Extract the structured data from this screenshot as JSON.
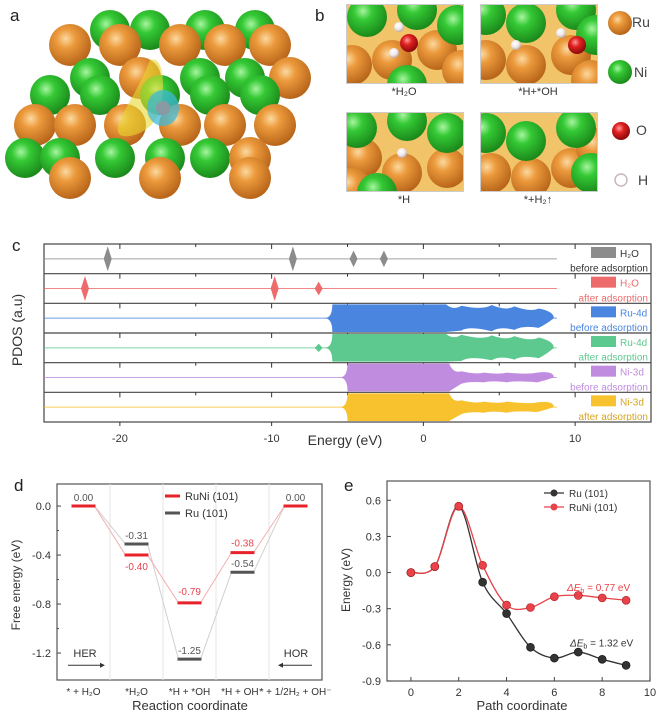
{
  "panels": {
    "a": {
      "letter": "a"
    },
    "b": {
      "letter": "b",
      "states": [
        {
          "label": "*H₂O"
        },
        {
          "label": "*H+*OH"
        },
        {
          "label": "*H"
        },
        {
          "label": "*+H₂↑"
        }
      ],
      "legend": [
        {
          "label": "Ru",
          "color": "#e8902a"
        },
        {
          "label": "Ni",
          "color": "#2fc02f"
        },
        {
          "label": "O",
          "color": "#d41c1c"
        },
        {
          "label": "H",
          "color": "#f4eeee"
        }
      ]
    },
    "c": {
      "letter": "c"
    },
    "d": {
      "letter": "d"
    },
    "e": {
      "letter": "e"
    }
  },
  "chart_data": [
    {
      "id": "c",
      "type": "area",
      "title": "",
      "xlabel": "Energy (eV)",
      "ylabel": "PDOS (a.u)",
      "xlim": [
        -25,
        15
      ],
      "xticks": [
        -20,
        -10,
        0,
        10
      ],
      "xtick_labels": [
        "-20",
        "-10",
        "0",
        "10"
      ],
      "series": [
        {
          "name": "H2O",
          "name_display": "H₂O",
          "sublabel": "before adsorption",
          "color": "#8c8c8c",
          "label_color": "#333333",
          "peaks": [
            [
              -20.8,
              0.9
            ],
            [
              -8.6,
              0.9
            ],
            [
              -4.6,
              0.6
            ],
            [
              -2.6,
              0.6
            ]
          ],
          "band": null
        },
        {
          "name": "H2O",
          "name_display": "H₂O",
          "sublabel": "after adsorption",
          "color": "#ee6b6b",
          "label_color": "#ee6b6b",
          "peaks": [
            [
              -22.3,
              0.9
            ],
            [
              -9.8,
              0.9
            ],
            [
              -6.9,
              0.5
            ]
          ],
          "band": null
        },
        {
          "name": "Ru-4d",
          "name_display": "Ru-4d",
          "sublabel": "before adsorption",
          "color": "#4a86e0",
          "label_color": "#4a86e0",
          "peaks": [],
          "band": {
            "start": -6.0,
            "full_end": 1.5,
            "tail_end": 8.6,
            "tail_bumps": [
              [
                2.5,
                0.9
              ],
              [
                4.5,
                0.95
              ],
              [
                6.0,
                0.85
              ],
              [
                7.6,
                0.7
              ]
            ]
          }
        },
        {
          "name": "Ru-4d",
          "name_display": "Ru-4d",
          "sublabel": "after adsorption",
          "color": "#5ec98f",
          "label_color": "#5ec98f",
          "peaks": [
            [
              -6.9,
              0.3
            ]
          ],
          "band": {
            "start": -6.0,
            "full_end": 1.5,
            "tail_end": 8.6,
            "tail_bumps": [
              [
                2.5,
                0.95
              ],
              [
                4.5,
                0.9
              ],
              [
                6.0,
                0.85
              ],
              [
                7.6,
                0.75
              ]
            ]
          }
        },
        {
          "name": "Ni-3d",
          "name_display": "Ni-3d",
          "sublabel": "before adsorption",
          "color": "#c08ce0",
          "label_color": "#c08ce0",
          "peaks": [],
          "band": {
            "start": -5.0,
            "full_end": 1.7,
            "tail_end": 8.6,
            "tail_bumps": [
              [
                2.5,
                0.45
              ],
              [
                4.0,
                0.35
              ],
              [
                5.5,
                0.35
              ],
              [
                7.5,
                0.35
              ]
            ]
          }
        },
        {
          "name": "Ni-3d",
          "name_display": "Ni-3d",
          "sublabel": "after adsorption",
          "color": "#f7c22e",
          "label_color": "#d8a420",
          "peaks": [],
          "band": {
            "start": -5.0,
            "full_end": 1.7,
            "tail_end": 8.6,
            "tail_bumps": [
              [
                2.5,
                0.5
              ],
              [
                4.0,
                0.4
              ],
              [
                5.5,
                0.4
              ],
              [
                7.5,
                0.35
              ]
            ]
          }
        }
      ]
    },
    {
      "id": "d",
      "type": "line",
      "title": "",
      "xlabel": "Reaction coordinate",
      "ylabel": "Free energy (eV)",
      "ylim": [
        -1.42,
        0.18
      ],
      "yticks": [
        0.0,
        -0.4,
        -0.8,
        -1.2
      ],
      "ytick_labels": [
        "0.0",
        "-0.4",
        "-0.8",
        "-1.2"
      ],
      "categories": [
        "* + H₂O",
        "*H₂O",
        "*H + *OH",
        "*H + OH⁻",
        "* + 1/2H₂ + OH⁻"
      ],
      "series": [
        {
          "name": "RuNi (101)",
          "color": "#e8222a",
          "values": [
            0.0,
            -0.4,
            -0.79,
            -0.38,
            0.0
          ],
          "labels": [
            "0.00",
            "-0.40",
            "-0.79",
            "-0.38",
            "0.00"
          ]
        },
        {
          "name": "Ru (101)",
          "color": "#555555",
          "values": [
            0.0,
            -0.31,
            -1.25,
            -0.54,
            0.0
          ],
          "labels": [
            "0.00",
            "-0.31",
            "-1.25",
            "-0.54",
            "0.00"
          ]
        }
      ],
      "annotations": [
        {
          "text": "HER",
          "direction": "right",
          "position": "bottom-left"
        },
        {
          "text": "HOR",
          "direction": "left",
          "position": "bottom-right"
        }
      ],
      "legend": "top-center"
    },
    {
      "id": "e",
      "type": "line",
      "title": "",
      "xlabel": "Path coordinate",
      "ylabel": "Energy (eV)",
      "xlim": [
        -1,
        10
      ],
      "ylim": [
        -0.9,
        0.76
      ],
      "xticks": [
        0,
        2,
        4,
        6,
        8,
        10
      ],
      "yticks": [
        0.6,
        0.3,
        0.0,
        -0.3,
        -0.6,
        -0.9
      ],
      "xtick_labels": [
        "0",
        "2",
        "4",
        "6",
        "8",
        "10"
      ],
      "ytick_labels": [
        "0.6",
        "0.3",
        "0.0",
        "-0.3",
        "-0.6",
        "-0.9"
      ],
      "series": [
        {
          "name": "Ru (101)",
          "color": "#333333",
          "x": [
            0,
            1,
            2,
            3,
            4,
            5,
            6,
            7,
            8,
            9
          ],
          "values": [
            0.0,
            0.05,
            0.55,
            -0.08,
            -0.34,
            -0.62,
            -0.71,
            -0.66,
            -0.72,
            -0.77
          ]
        },
        {
          "name": "RuNi (101)",
          "color": "#e8424a",
          "x": [
            0,
            1,
            2,
            3,
            4,
            5,
            6,
            7,
            8,
            9
          ],
          "values": [
            0.0,
            0.05,
            0.55,
            0.06,
            -0.27,
            -0.29,
            -0.2,
            -0.19,
            -0.21,
            -0.23
          ]
        }
      ],
      "annotations": [
        {
          "text_prefix": "ΔE",
          "text_sub": "b",
          "text_suffix": " = 0.77 eV",
          "color": "#e8424a"
        },
        {
          "text_prefix": "ΔE",
          "text_sub": "b",
          "text_suffix": " = 1.32 eV",
          "color": "#333333"
        }
      ],
      "legend": "top-right"
    }
  ]
}
